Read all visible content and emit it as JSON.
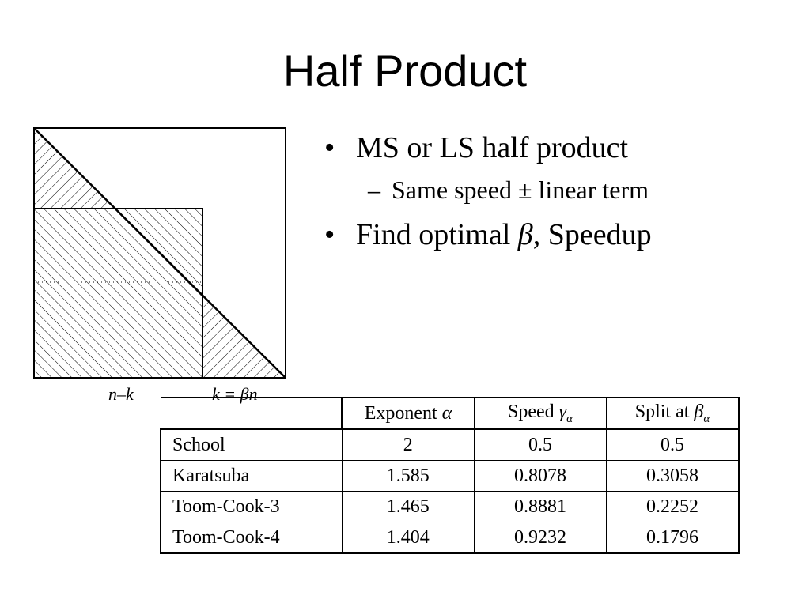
{
  "slide": {
    "title": "Half Product"
  },
  "diagram": {
    "label_left": "n–k",
    "label_right": "k = βn"
  },
  "bullets": [
    {
      "level": 1,
      "text": "MS or LS half product"
    },
    {
      "level": 2,
      "text": "Same speed ± linear term"
    },
    {
      "level": 1,
      "text_prefix": "Find optimal ",
      "text_italic": "β",
      "text_suffix": ", Speedup"
    }
  ],
  "table": {
    "headers": [
      {
        "text": "Exponent ",
        "symbol": "α",
        "sub": ""
      },
      {
        "text": "Speed ",
        "symbol": "γ",
        "sub": "α"
      },
      {
        "text": "Split at ",
        "symbol": "β",
        "sub": "α"
      }
    ],
    "rows": [
      {
        "name": "School",
        "values": [
          "2",
          "0.5",
          "0.5"
        ]
      },
      {
        "name": "Karatsuba",
        "values": [
          "1.585",
          "0.8078",
          "0.3058"
        ]
      },
      {
        "name": "Toom-Cook-3",
        "values": [
          "1.465",
          "0.8881",
          "0.2252"
        ]
      },
      {
        "name": "Toom-Cook-4",
        "values": [
          "1.404",
          "0.9232",
          "0.1796"
        ]
      }
    ]
  }
}
